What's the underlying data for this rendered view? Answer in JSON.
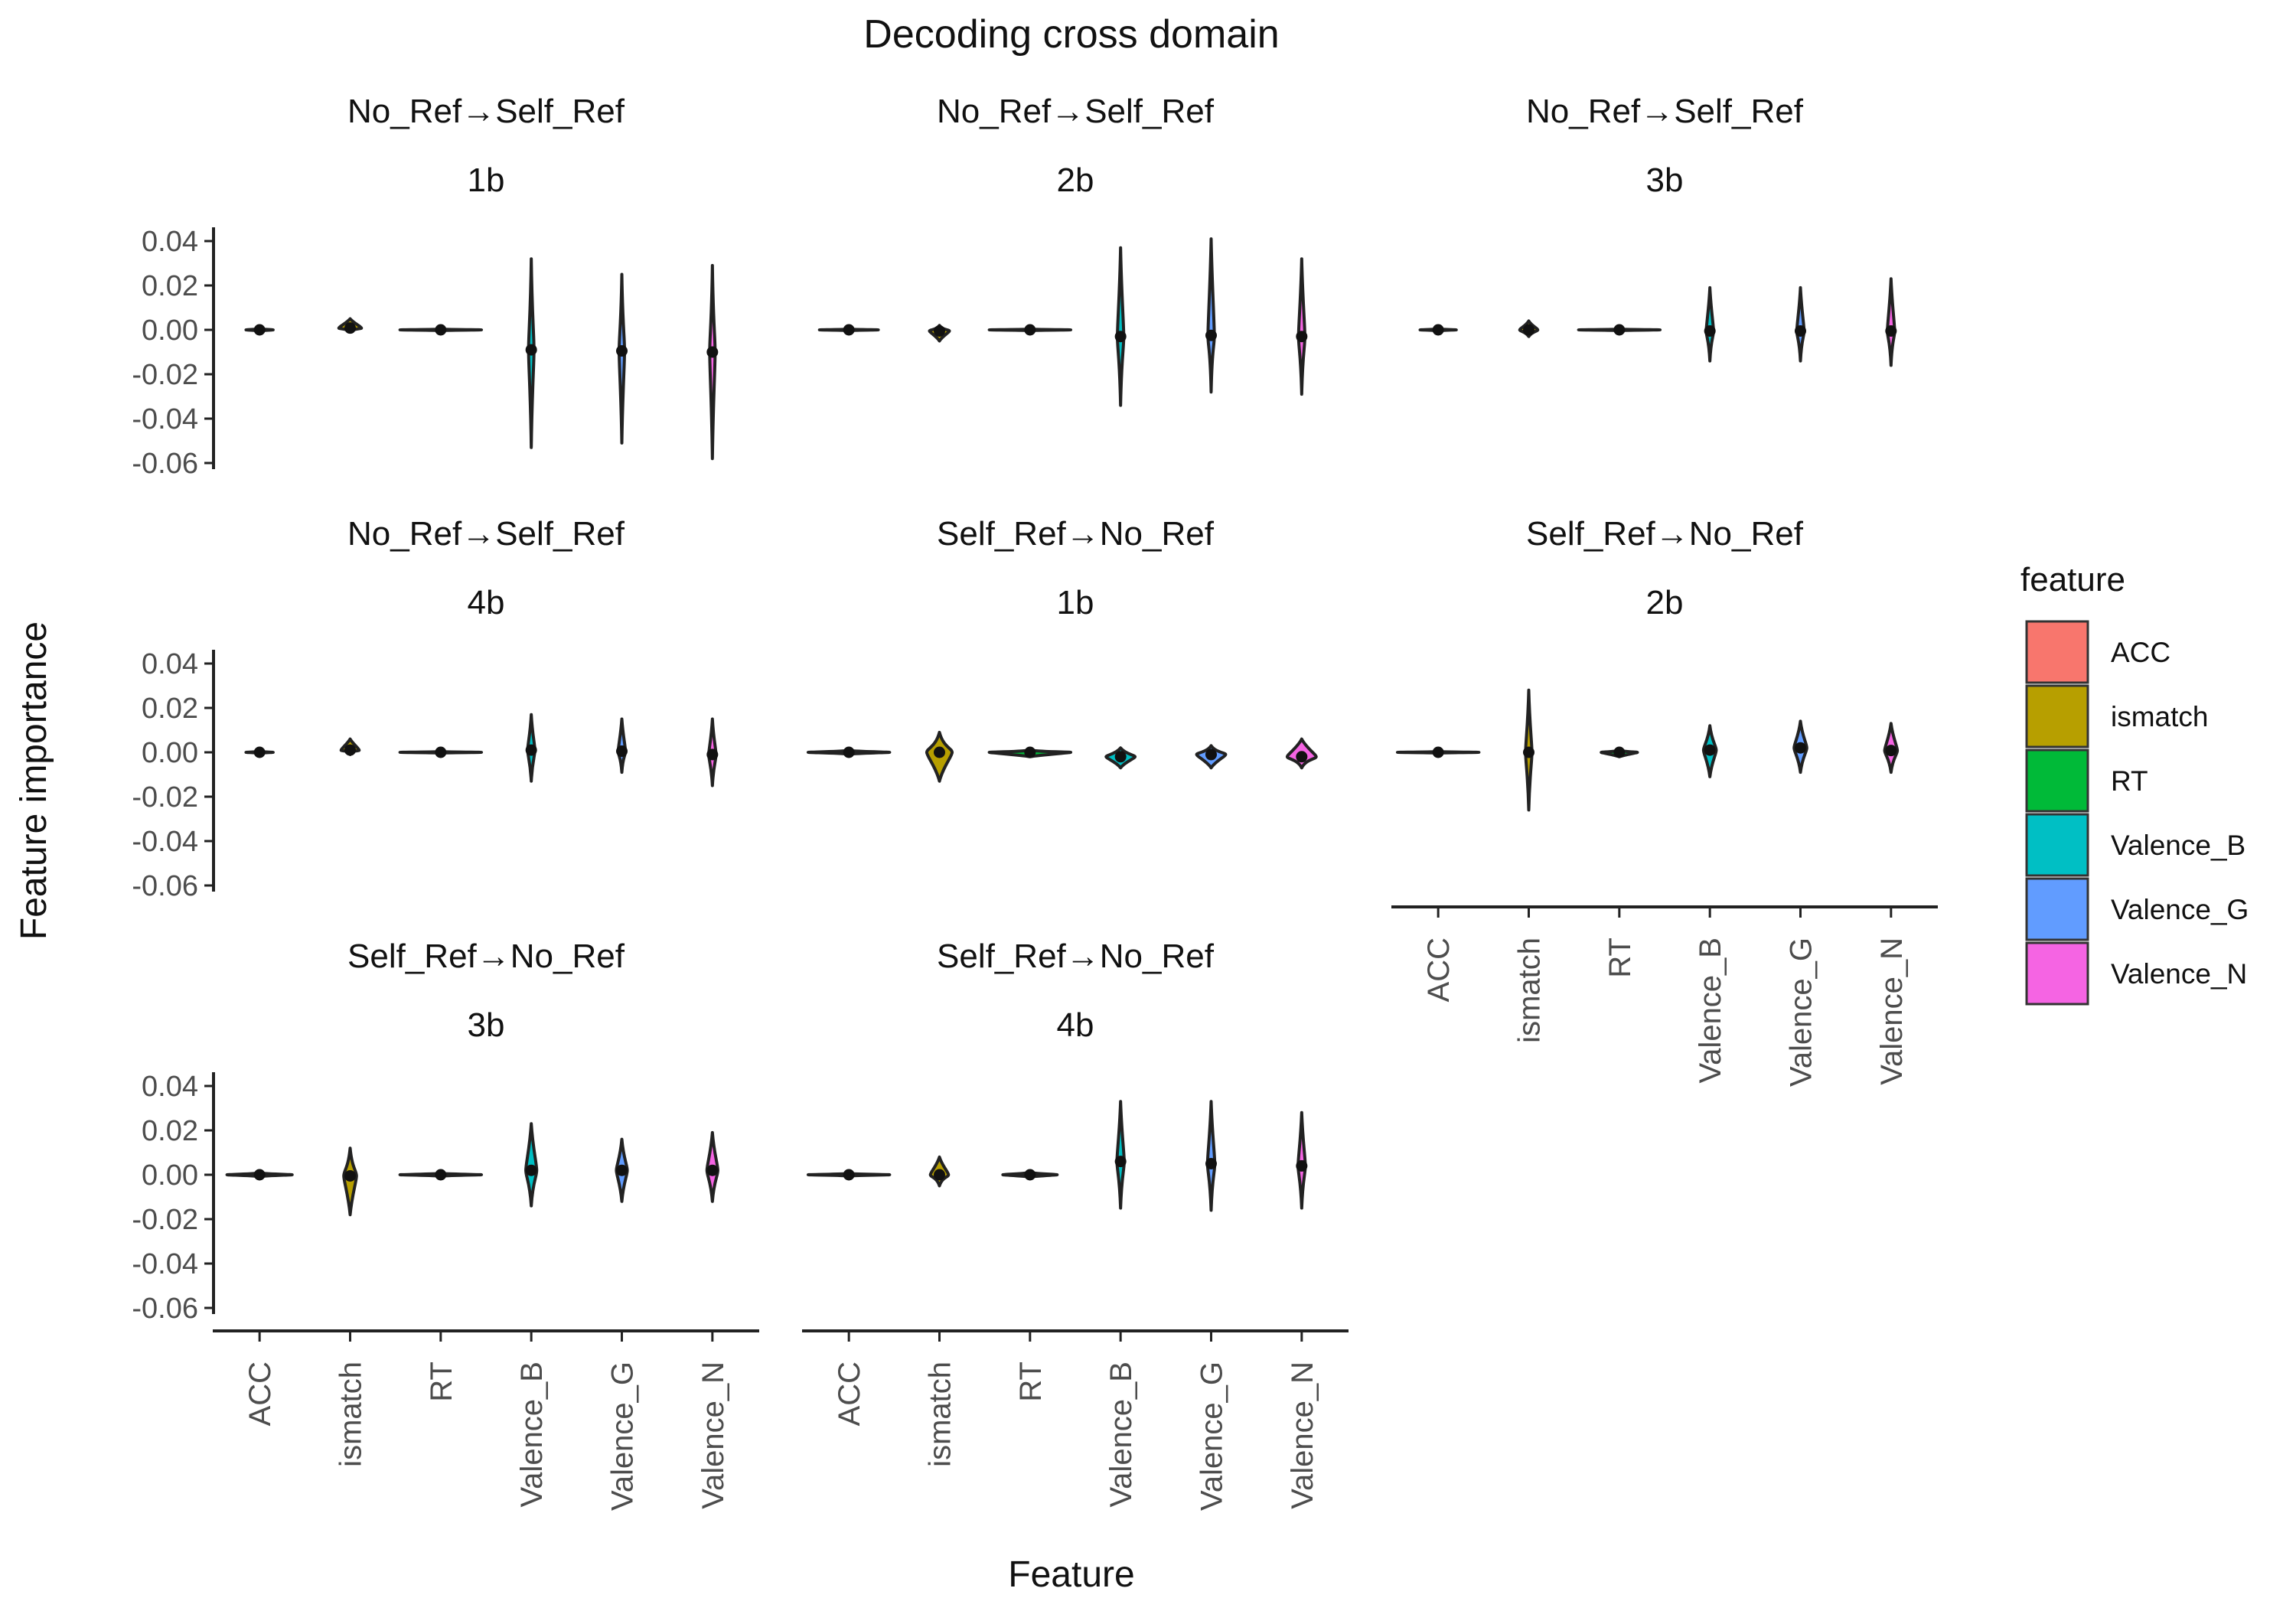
{
  "chart_data": {
    "type": "violin",
    "title": "Decoding cross domain",
    "xlabel": "Feature",
    "ylabel": "Feature importance",
    "ylim": [
      -0.06,
      0.04
    ],
    "yticks": [
      0.04,
      0.02,
      0.0,
      -0.02,
      -0.04,
      -0.06
    ],
    "ytick_labels": [
      "0.04",
      "0.02",
      "0.00",
      "-0.02",
      "-0.04",
      "-0.06"
    ],
    "categories": [
      "ACC",
      "ismatch",
      "RT",
      "Valence_B",
      "Valence_G",
      "Valence_N"
    ],
    "legend": {
      "title": "feature",
      "position": "right",
      "items": [
        {
          "label": "ACC",
          "color": "#F8766D"
        },
        {
          "label": "ismatch",
          "color": "#B79F00"
        },
        {
          "label": "RT",
          "color": "#00BA38"
        },
        {
          "label": "Valence_B",
          "color": "#00BFC4"
        },
        {
          "label": "Valence_G",
          "color": "#619CFF"
        },
        {
          "label": "Valence_N",
          "color": "#F564E3"
        }
      ]
    },
    "panels": [
      {
        "direction": "No_Ref→Self_Ref",
        "level": "1b",
        "series": [
          {
            "feature": "ACC",
            "median": 0.0,
            "min": -0.0005,
            "max": 0.0005,
            "width": 0.3
          },
          {
            "feature": "ismatch",
            "median": 0.0008,
            "min": -0.001,
            "max": 0.005,
            "width": 0.25
          },
          {
            "feature": "RT",
            "median": 0.0,
            "min": -0.0003,
            "max": 0.0003,
            "width": 0.9
          },
          {
            "feature": "Valence_B",
            "median": -0.009,
            "min": -0.053,
            "max": 0.032,
            "width": 0.06
          },
          {
            "feature": "Valence_G",
            "median": -0.0095,
            "min": -0.051,
            "max": 0.025,
            "width": 0.06
          },
          {
            "feature": "Valence_N",
            "median": -0.01,
            "min": -0.058,
            "max": 0.029,
            "width": 0.06
          }
        ]
      },
      {
        "direction": "No_Ref→Self_Ref",
        "level": "2b",
        "series": [
          {
            "feature": "ACC",
            "median": 0.0,
            "min": -0.0003,
            "max": 0.0003,
            "width": 0.65
          },
          {
            "feature": "ismatch",
            "median": -0.0005,
            "min": -0.005,
            "max": 0.002,
            "width": 0.22
          },
          {
            "feature": "RT",
            "median": 0.0,
            "min": -0.0003,
            "max": 0.0003,
            "width": 0.9
          },
          {
            "feature": "Valence_B",
            "median": -0.003,
            "min": -0.034,
            "max": 0.037,
            "width": 0.07
          },
          {
            "feature": "Valence_G",
            "median": -0.0025,
            "min": -0.028,
            "max": 0.041,
            "width": 0.07
          },
          {
            "feature": "Valence_N",
            "median": -0.003,
            "min": -0.029,
            "max": 0.032,
            "width": 0.07
          }
        ]
      },
      {
        "direction": "No_Ref→Self_Ref",
        "level": "3b",
        "series": [
          {
            "feature": "ACC",
            "median": 0.0,
            "min": -0.0004,
            "max": 0.0004,
            "width": 0.4
          },
          {
            "feature": "ismatch",
            "median": 0.0,
            "min": -0.003,
            "max": 0.004,
            "width": 0.2
          },
          {
            "feature": "RT",
            "median": 0.0,
            "min": -0.0003,
            "max": 0.0003,
            "width": 0.9
          },
          {
            "feature": "Valence_B",
            "median": -0.0005,
            "min": -0.014,
            "max": 0.019,
            "width": 0.08
          },
          {
            "feature": "Valence_G",
            "median": -0.0005,
            "min": -0.014,
            "max": 0.019,
            "width": 0.08
          },
          {
            "feature": "Valence_N",
            "median": -0.0005,
            "min": -0.016,
            "max": 0.023,
            "width": 0.08
          }
        ]
      },
      {
        "direction": "No_Ref→Self_Ref",
        "level": "4b",
        "series": [
          {
            "feature": "ACC",
            "median": 0.0,
            "min": -0.0004,
            "max": 0.0004,
            "width": 0.3
          },
          {
            "feature": "ismatch",
            "median": 0.001,
            "min": -0.001,
            "max": 0.006,
            "width": 0.2
          },
          {
            "feature": "RT",
            "median": 0.0,
            "min": -0.0003,
            "max": 0.0003,
            "width": 0.9
          },
          {
            "feature": "Valence_B",
            "median": 0.001,
            "min": -0.013,
            "max": 0.017,
            "width": 0.08
          },
          {
            "feature": "Valence_G",
            "median": 0.0005,
            "min": -0.009,
            "max": 0.015,
            "width": 0.08
          },
          {
            "feature": "Valence_N",
            "median": -0.001,
            "min": -0.015,
            "max": 0.015,
            "width": 0.08
          }
        ]
      },
      {
        "direction": "Self_Ref→No_Ref",
        "level": "1b",
        "series": [
          {
            "feature": "ACC",
            "median": 0.0,
            "min": -0.0008,
            "max": 0.0008,
            "width": 0.9
          },
          {
            "feature": "ismatch",
            "median": 0.0,
            "min": -0.013,
            "max": 0.009,
            "width": 0.28
          },
          {
            "feature": "RT",
            "median": 0.0,
            "min": -0.002,
            "max": 0.001,
            "width": 0.9
          },
          {
            "feature": "Valence_B",
            "median": -0.002,
            "min": -0.007,
            "max": 0.002,
            "width": 0.32
          },
          {
            "feature": "Valence_G",
            "median": -0.001,
            "min": -0.007,
            "max": 0.003,
            "width": 0.32
          },
          {
            "feature": "Valence_N",
            "median": -0.002,
            "min": -0.007,
            "max": 0.006,
            "width": 0.32
          }
        ]
      },
      {
        "direction": "Self_Ref→No_Ref",
        "level": "2b",
        "series": [
          {
            "feature": "ACC",
            "median": 0.0,
            "min": -0.0003,
            "max": 0.0003,
            "width": 0.9
          },
          {
            "feature": "ismatch",
            "median": 0.0,
            "min": -0.026,
            "max": 0.028,
            "width": 0.07
          },
          {
            "feature": "RT",
            "median": 0.0,
            "min": -0.002,
            "max": 0.001,
            "width": 0.4
          },
          {
            "feature": "Valence_B",
            "median": 0.001,
            "min": -0.011,
            "max": 0.012,
            "width": 0.14
          },
          {
            "feature": "Valence_G",
            "median": 0.002,
            "min": -0.009,
            "max": 0.014,
            "width": 0.14
          },
          {
            "feature": "Valence_N",
            "median": 0.0008,
            "min": -0.009,
            "max": 0.013,
            "width": 0.14
          }
        ]
      },
      {
        "direction": "Self_Ref→No_Ref",
        "level": "3b",
        "series": [
          {
            "feature": "ACC",
            "median": 0.0,
            "min": -0.0008,
            "max": 0.0008,
            "width": 0.72
          },
          {
            "feature": "ismatch",
            "median": -0.0005,
            "min": -0.018,
            "max": 0.012,
            "width": 0.14
          },
          {
            "feature": "RT",
            "median": 0.0,
            "min": -0.0006,
            "max": 0.0006,
            "width": 0.9
          },
          {
            "feature": "Valence_B",
            "median": 0.002,
            "min": -0.014,
            "max": 0.023,
            "width": 0.12
          },
          {
            "feature": "Valence_G",
            "median": 0.002,
            "min": -0.012,
            "max": 0.016,
            "width": 0.12
          },
          {
            "feature": "Valence_N",
            "median": 0.002,
            "min": -0.012,
            "max": 0.019,
            "width": 0.12
          }
        ]
      },
      {
        "direction": "Self_Ref→No_Ref",
        "level": "4b",
        "series": [
          {
            "feature": "ACC",
            "median": 0.0,
            "min": -0.0005,
            "max": 0.0005,
            "width": 0.9
          },
          {
            "feature": "ismatch",
            "median": 0.0,
            "min": -0.005,
            "max": 0.008,
            "width": 0.2
          },
          {
            "feature": "RT",
            "median": 0.0,
            "min": -0.001,
            "max": 0.001,
            "width": 0.6
          },
          {
            "feature": "Valence_B",
            "median": 0.006,
            "min": -0.015,
            "max": 0.033,
            "width": 0.08
          },
          {
            "feature": "Valence_G",
            "median": 0.005,
            "min": -0.016,
            "max": 0.033,
            "width": 0.08
          },
          {
            "feature": "Valence_N",
            "median": 0.004,
            "min": -0.015,
            "max": 0.028,
            "width": 0.08
          }
        ]
      }
    ]
  }
}
